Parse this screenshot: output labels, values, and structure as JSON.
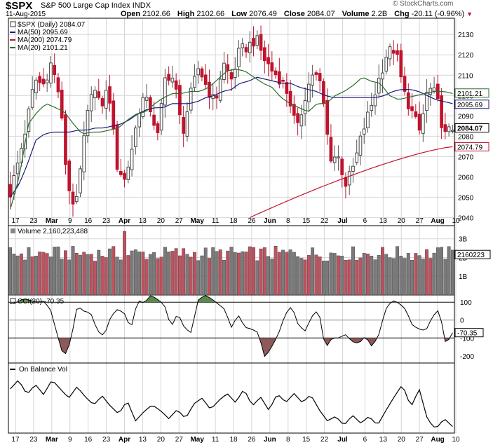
{
  "header": {
    "symbol": "$SPX",
    "name": "S&P 500 Large Cap Index",
    "exchange": "INDX",
    "date": "11-Aug-2015",
    "open_label": "Open",
    "open": "2102.66",
    "high_label": "High",
    "high": "2102.66",
    "low_label": "Low",
    "low": "2076.49",
    "close_label": "Close",
    "close": "2084.07",
    "volume_label": "Volume",
    "volume": "2.2B",
    "chg_label": "Chg",
    "chg": "-20.11 (-0.96%)",
    "down_arrow": "▼",
    "watermark": "© StockCharts.com"
  },
  "chart_data": [
    {
      "type": "candlestick",
      "panel": "price",
      "legend_title": "$SPX (Daily) 2084.07",
      "legend": [
        {
          "name": "MA(50) 2095.69",
          "color": "#1a1a7a"
        },
        {
          "name": "MA(200) 2074.79",
          "color": "#c0132d"
        },
        {
          "name": "MA(20) 2101.21",
          "color": "#2e6b2e"
        }
      ],
      "ylim": [
        2036,
        2138
      ],
      "yticks": [
        "2130",
        "2120",
        "2110",
        "2100",
        "2090",
        "2080",
        "2070",
        "2060",
        "2050",
        "2040"
      ],
      "value_tags": [
        {
          "label": "2101.21",
          "value": 2101.21,
          "bold": false
        },
        {
          "label": "2095.69",
          "value": 2095.69,
          "bold": false
        },
        {
          "label": "2084.07",
          "value": 2084.07,
          "bold": true
        },
        {
          "label": "2074.79",
          "value": 2074.79,
          "bold": false
        }
      ],
      "close_key": [
        2052,
        2068,
        2086,
        2108,
        2105,
        2116,
        2100,
        2056,
        2044,
        2078,
        2106,
        2094,
        2104,
        2066,
        2058,
        2077,
        2099,
        2095,
        2080,
        2111,
        2108,
        2081,
        2100,
        2114,
        2104,
        2096,
        2116,
        2108,
        2122,
        2124,
        2128,
        2118,
        2112,
        2108,
        2100,
        2082,
        2100,
        2112,
        2104,
        2070,
        2070,
        2056,
        2066,
        2082,
        2094,
        2108,
        2121,
        2123,
        2102,
        2092,
        2082,
        2104,
        2100,
        2080,
        2084
      ],
      "ma50_key": [
        2050,
        2056,
        2066,
        2078,
        2081,
        2082,
        2082,
        2082,
        2083,
        2083,
        2084,
        2084,
        2085,
        2086,
        2088,
        2091,
        2093,
        2094,
        2094,
        2096,
        2096,
        2096,
        2097,
        2099,
        2100,
        2102,
        2103,
        2106,
        2107,
        2109,
        2108,
        2107,
        2106,
        2106,
        2104,
        2103,
        2102,
        2100,
        2099,
        2099,
        2099,
        2099,
        2099,
        2099,
        2100,
        2102,
        2103,
        2103,
        2102,
        2100,
        2098,
        2097,
        2096
      ],
      "ma20_key": [
        2044,
        2060,
        2086,
        2092,
        2096,
        2094,
        2092,
        2086,
        2081,
        2082,
        2082,
        2083,
        2084,
        2088,
        2091,
        2092,
        2096,
        2099,
        2101,
        2101,
        2102,
        2102,
        2104,
        2108,
        2112,
        2113,
        2112,
        2109,
        2106,
        2104,
        2099,
        2096,
        2094,
        2092,
        2096,
        2096,
        2100,
        2102,
        2105,
        2109,
        2107,
        2106,
        2100,
        2098,
        2099,
        2100,
        2101,
        2102,
        2102,
        2101
      ],
      "ma200_start": 2040,
      "ma200_end": 2074.79
    },
    {
      "type": "bar",
      "panel": "volume",
      "legend_title": "Volume 2,160,223,488",
      "ylim": [
        0,
        3.7
      ],
      "yticks": [
        "3B",
        "2B",
        "1B"
      ],
      "value_tags": [
        {
          "label": "2160223",
          "value": 2.16
        }
      ],
      "spike": 3.4
    },
    {
      "type": "line",
      "panel": "cci",
      "legend_title": "CCI(20) -70.35",
      "ylim": [
        -240,
        140
      ],
      "yticks": [
        "100",
        "0",
        "-100",
        "-200"
      ],
      "bands": [
        100,
        -100
      ],
      "value_tags": [
        {
          "label": "-70.35",
          "value": -70.35
        }
      ],
      "key": [
        90,
        100,
        120,
        110,
        100,
        105,
        60,
        -80,
        -210,
        -120,
        80,
        50,
        40,
        -60,
        -90,
        20,
        60,
        40,
        -50,
        110,
        95,
        140,
        115,
        85,
        -40,
        40,
        -45,
        -70,
        110,
        140,
        120,
        90,
        60,
        -40,
        30,
        -40,
        -50,
        -70,
        -210,
        -150,
        -80,
        30,
        80,
        -30,
        -60,
        20,
        60,
        -160,
        -100,
        -100,
        -80,
        -120,
        -130,
        -90,
        -150,
        -80,
        60,
        110,
        95,
        60,
        -30,
        -50,
        -60,
        20,
        60,
        -140,
        -70
      ]
    },
    {
      "type": "line",
      "panel": "obv",
      "legend_title": "On Balance Vol",
      "key": [
        10,
        18,
        5,
        14,
        5,
        18,
        10,
        2,
        12,
        3,
        -4,
        4,
        -5,
        -12,
        0,
        -18,
        -10,
        -4,
        -9,
        -16,
        -8,
        -16,
        -3,
        2,
        -8,
        0,
        6,
        -2,
        10,
        -5,
        3,
        -9,
        6,
        -2,
        6,
        -2,
        5,
        -8,
        -18,
        -14,
        -22,
        -13,
        -20,
        -14,
        -22,
        -9,
        3,
        14,
        -6,
        10,
        -17,
        -25,
        -16,
        -23
      ]
    }
  ],
  "x_axis": {
    "labels": [
      {
        "text": "17",
        "bold": false
      },
      {
        "text": "23",
        "bold": false
      },
      {
        "text": "Mar",
        "bold": true
      },
      {
        "text": "9",
        "bold": false
      },
      {
        "text": "16",
        "bold": false
      },
      {
        "text": "23",
        "bold": false
      },
      {
        "text": "Apr",
        "bold": true
      },
      {
        "text": "13",
        "bold": false
      },
      {
        "text": "20",
        "bold": false
      },
      {
        "text": "27",
        "bold": false
      },
      {
        "text": "May",
        "bold": true
      },
      {
        "text": "11",
        "bold": false
      },
      {
        "text": "18",
        "bold": false
      },
      {
        "text": "26",
        "bold": false
      },
      {
        "text": "Jun",
        "bold": true
      },
      {
        "text": "8",
        "bold": false
      },
      {
        "text": "15",
        "bold": false
      },
      {
        "text": "22",
        "bold": false
      },
      {
        "text": "Jul",
        "bold": true
      },
      {
        "text": "6",
        "bold": false
      },
      {
        "text": "13",
        "bold": false
      },
      {
        "text": "20",
        "bold": false
      },
      {
        "text": "27",
        "bold": false
      },
      {
        "text": "Aug",
        "bold": true
      },
      {
        "text": "10",
        "bold": false
      }
    ]
  },
  "colors": {
    "up": "#8c8c8c",
    "down": "#c0132d",
    "grid": "#d6d6d6",
    "ma50": "#1a1a7a",
    "ma20": "#2e6b2e",
    "ma200": "#c0132d",
    "cci_pos": "#5a8a4a",
    "cci_neg": "#8c5a5a"
  }
}
